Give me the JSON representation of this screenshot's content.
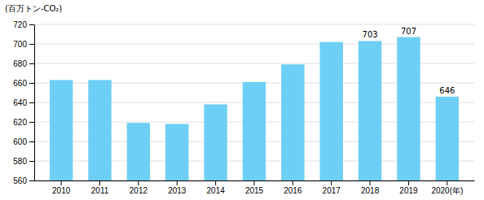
{
  "chart_data": {
    "type": "bar",
    "ylabel": "(百万トン-CO₂)",
    "categories": [
      "2010",
      "2011",
      "2012",
      "2013",
      "2014",
      "2015",
      "2016",
      "2017",
      "2018",
      "2019",
      "2020(年)"
    ],
    "values": [
      663,
      663,
      619,
      618,
      638,
      661,
      679,
      702,
      703,
      707,
      646
    ],
    "color": "#6ECFF6",
    "ylim": [
      560,
      720
    ],
    "yticks": [
      560,
      580,
      600,
      620,
      640,
      660,
      680,
      700,
      720
    ],
    "grid": true,
    "annotations": [
      {
        "x": "2018",
        "value": 703
      },
      {
        "x": "2019",
        "value": 707
      },
      {
        "x": "2020(年)",
        "value": 646
      }
    ]
  }
}
